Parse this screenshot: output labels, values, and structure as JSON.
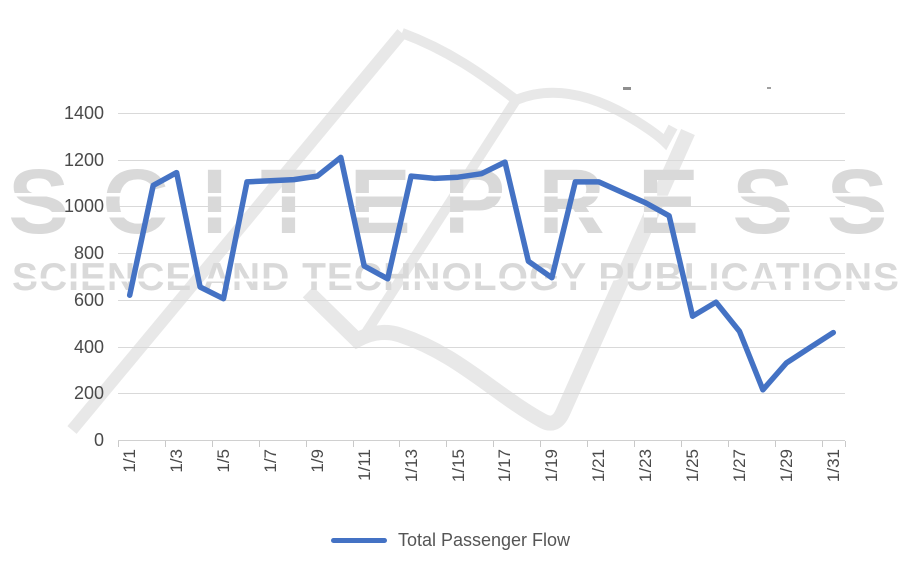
{
  "watermark": {
    "line1": "SCITEPRESS",
    "line2": "SCIENCE AND TECHNOLOGY PUBLICATIONS"
  },
  "legend": {
    "label": "Total Passenger Flow"
  },
  "colors": {
    "line": "#4472C4",
    "gridline": "#D9D9D9",
    "axis_text": "#4A4A4A",
    "legend_text": "#555555",
    "watermark_text": "#D9D9D9",
    "watermark_graphic": "#E8E8E8"
  },
  "chart_data": {
    "type": "line",
    "title": "",
    "xlabel": "",
    "ylabel": "",
    "x": [
      "1/1",
      "1/2",
      "1/3",
      "1/4",
      "1/5",
      "1/6",
      "1/7",
      "1/8",
      "1/9",
      "1/10",
      "1/11",
      "1/12",
      "1/13",
      "1/14",
      "1/15",
      "1/16",
      "1/17",
      "1/18",
      "1/19",
      "1/20",
      "1/21",
      "1/22",
      "1/23",
      "1/24",
      "1/25",
      "1/26",
      "1/27",
      "1/28",
      "1/29",
      "1/30",
      "1/31"
    ],
    "series": [
      {
        "name": "Total Passenger Flow",
        "color": "#4472C4",
        "values": [
          620,
          1090,
          1145,
          655,
          605,
          1105,
          1110,
          1115,
          1130,
          1210,
          745,
          690,
          1130,
          1120,
          1125,
          1140,
          1190,
          765,
          695,
          1105,
          1105,
          1060,
          1015,
          960,
          530,
          590,
          465,
          215,
          330,
          395,
          460
        ]
      }
    ],
    "ylim": [
      0,
      1400
    ],
    "yticks": [
      0,
      200,
      400,
      600,
      800,
      1000,
      1200,
      1400
    ],
    "grid": true,
    "legend_position": "bottom",
    "x_label_every": 2,
    "x_label_rotation_deg": -90
  }
}
